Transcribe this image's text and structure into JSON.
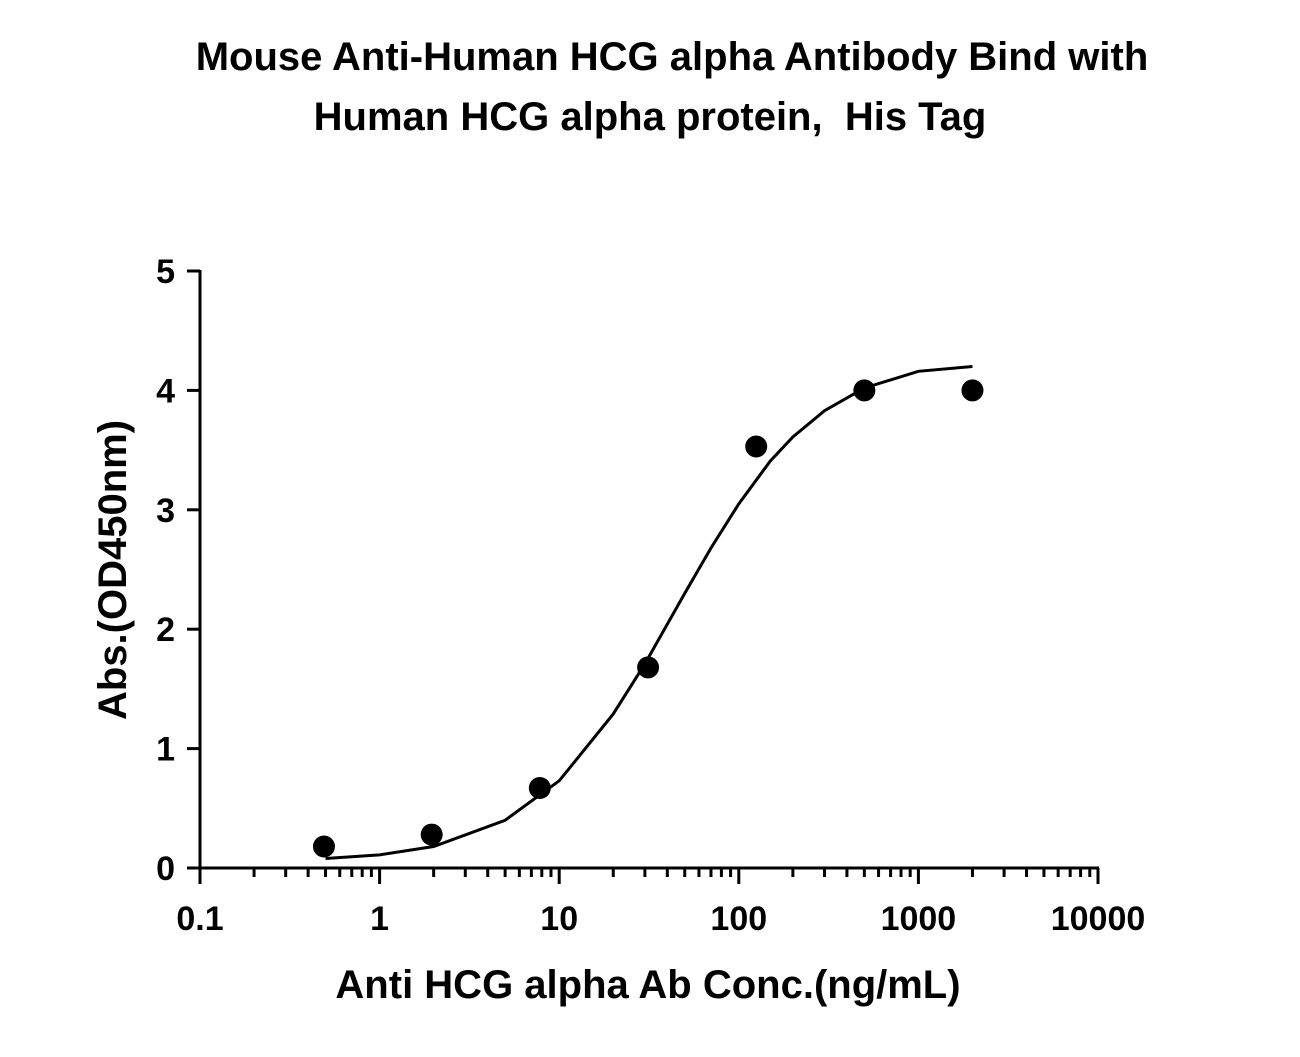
{
  "chart_data": {
    "type": "scatter",
    "title": [
      "Mouse Anti-Human HCG alpha Antibody Bind with",
      "Human HCG alpha protein,  His Tag"
    ],
    "xlabel": "Anti HCG alpha Ab Conc.(ng/mL)",
    "ylabel": "Abs.(OD450nm)",
    "xscale": "log",
    "xlim": [
      0.1,
      10000
    ],
    "xticks": [
      0.1,
      1,
      10,
      100,
      1000,
      10000
    ],
    "ylim": [
      0,
      5
    ],
    "yticks": [
      0,
      1,
      2,
      3,
      4,
      5
    ],
    "grid": false,
    "color": "#000000",
    "x": [
      0.49,
      1.95,
      7.8,
      31.25,
      125,
      500,
      2000
    ],
    "values": [
      0.18,
      0.28,
      0.67,
      1.68,
      3.53,
      4.0,
      4.0
    ],
    "fit": {
      "x": [
        0.5,
        1,
        2,
        5,
        10,
        20,
        30,
        50,
        70,
        100,
        150,
        200,
        300,
        500,
        1000,
        2000
      ],
      "values": [
        0.08,
        0.11,
        0.18,
        0.4,
        0.73,
        1.29,
        1.71,
        2.3,
        2.68,
        3.05,
        3.41,
        3.61,
        3.83,
        4.02,
        4.16,
        4.2
      ]
    }
  }
}
